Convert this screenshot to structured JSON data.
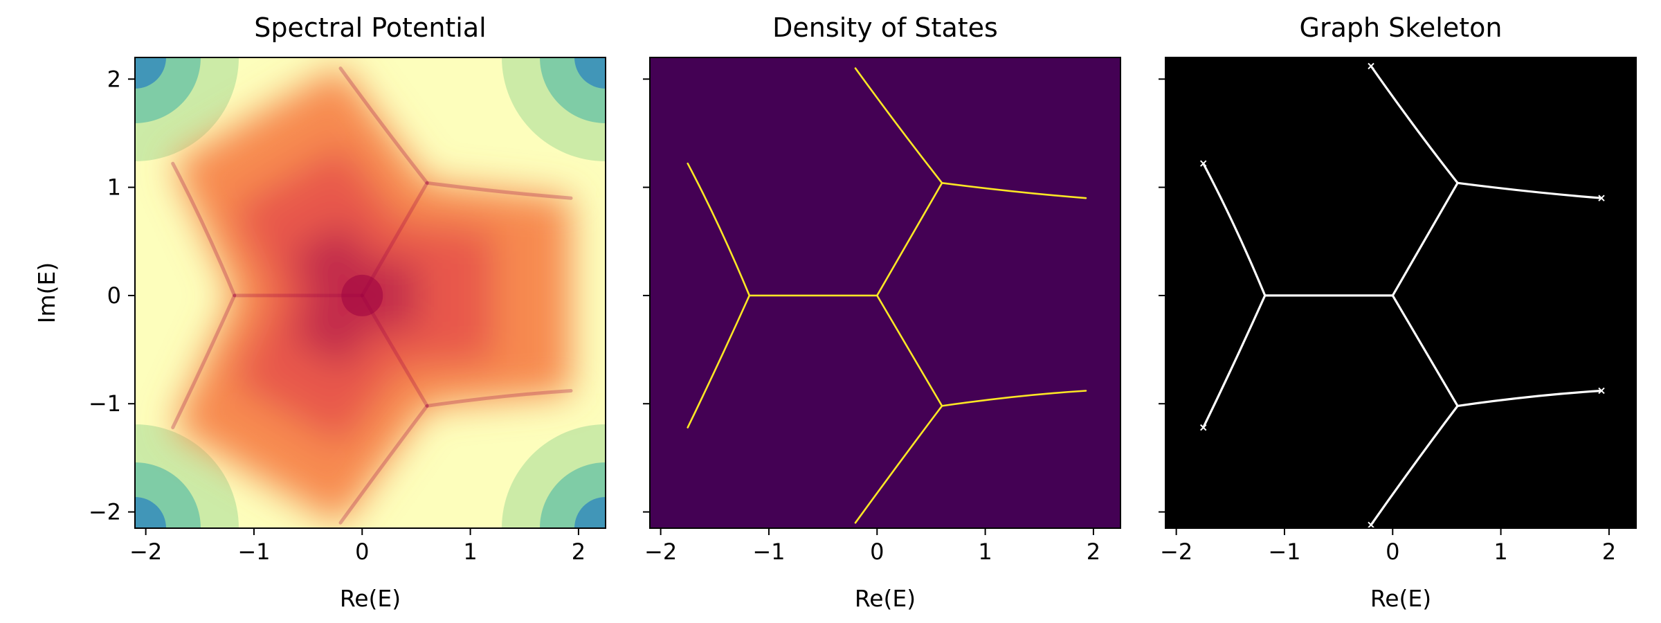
{
  "figure": {
    "ylabel": "Im(E)"
  },
  "chart_data": [
    {
      "type": "heatmap",
      "title": "Spectral Potential",
      "xlabel": "Re(E)",
      "ylabel": "Im(E)",
      "xlim": [
        -2.1,
        2.25
      ],
      "ylim": [
        -2.15,
        2.2
      ],
      "xticks": [
        -2,
        -1,
        0,
        1,
        2
      ],
      "yticks": [
        -2,
        -1,
        0,
        1,
        2
      ],
      "xtick_labels": [
        "−2",
        "−1",
        "0",
        "1",
        "2"
      ],
      "ytick_labels": [
        "−2",
        "−1",
        "0",
        "1",
        "2"
      ],
      "colormap": "Spectral",
      "low_color": "#9e0142",
      "high_color": "#5e4fa2",
      "skeleton_vertices": [
        [
          -1.75,
          1.22
        ],
        [
          -1.75,
          -1.22
        ],
        [
          -0.2,
          2.12
        ],
        [
          -0.2,
          -2.12
        ],
        [
          1.93,
          0.9
        ],
        [
          1.93,
          -0.9
        ],
        [
          -1.18,
          0.0
        ],
        [
          0.0,
          0.0
        ],
        [
          0.6,
          1.04
        ],
        [
          0.6,
          -1.02
        ]
      ]
    },
    {
      "type": "heatmap",
      "title": "Density of States",
      "xlabel": "Re(E)",
      "xlim": [
        -2.1,
        2.25
      ],
      "ylim": [
        -2.15,
        2.2
      ],
      "xticks": [
        -2,
        -1,
        0,
        1,
        2
      ],
      "xtick_labels": [
        "−2",
        "−1",
        "0",
        "1",
        "2"
      ],
      "colormap": "viridis",
      "background_color": "#440154",
      "line_color": "#fde725",
      "segments": [
        [
          [
            -1.75,
            1.22
          ],
          [
            -1.45,
            0.65
          ],
          [
            -1.18,
            0.0
          ]
        ],
        [
          [
            -1.75,
            -1.22
          ],
          [
            -1.45,
            -0.6
          ],
          [
            -1.18,
            0.0
          ]
        ],
        [
          [
            -1.18,
            0.0
          ],
          [
            0.0,
            0.0
          ]
        ],
        [
          [
            0.0,
            0.0
          ],
          [
            0.6,
            1.04
          ]
        ],
        [
          [
            0.0,
            0.0
          ],
          [
            0.6,
            -1.02
          ]
        ],
        [
          [
            -0.2,
            2.1
          ],
          [
            0.2,
            1.55
          ],
          [
            0.6,
            1.04
          ]
        ],
        [
          [
            0.6,
            1.04
          ],
          [
            1.3,
            0.95
          ],
          [
            1.93,
            0.9
          ]
        ],
        [
          [
            0.6,
            -1.02
          ],
          [
            1.3,
            -0.92
          ],
          [
            1.93,
            -0.88
          ]
        ],
        [
          [
            -0.2,
            -2.1
          ],
          [
            0.2,
            -1.55
          ],
          [
            0.6,
            -1.02
          ]
        ]
      ]
    },
    {
      "type": "heatmap",
      "title": "Graph Skeleton",
      "xlabel": "Re(E)",
      "xlim": [
        -2.1,
        2.25
      ],
      "ylim": [
        -2.15,
        2.2
      ],
      "xticks": [
        -2,
        -1,
        0,
        1,
        2
      ],
      "xtick_labels": [
        "−2",
        "−1",
        "0",
        "1",
        "2"
      ],
      "colormap": "gray",
      "background_color": "#000000",
      "line_color": "#ffffff",
      "endpoints": [
        [
          -1.75,
          1.22
        ],
        [
          -1.75,
          -1.22
        ],
        [
          -0.2,
          2.12
        ],
        [
          -0.2,
          -2.12
        ],
        [
          1.93,
          0.9
        ],
        [
          1.93,
          -0.88
        ]
      ],
      "segments": [
        [
          [
            -1.75,
            1.22
          ],
          [
            -1.45,
            0.65
          ],
          [
            -1.18,
            0.0
          ]
        ],
        [
          [
            -1.75,
            -1.22
          ],
          [
            -1.45,
            -0.6
          ],
          [
            -1.18,
            0.0
          ]
        ],
        [
          [
            -1.18,
            0.0
          ],
          [
            0.0,
            0.0
          ]
        ],
        [
          [
            0.0,
            0.0
          ],
          [
            0.6,
            1.04
          ]
        ],
        [
          [
            0.0,
            0.0
          ],
          [
            0.6,
            -1.02
          ]
        ],
        [
          [
            -0.2,
            2.12
          ],
          [
            0.2,
            1.55
          ],
          [
            0.6,
            1.04
          ]
        ],
        [
          [
            0.6,
            1.04
          ],
          [
            1.3,
            0.95
          ],
          [
            1.93,
            0.9
          ]
        ],
        [
          [
            0.6,
            -1.02
          ],
          [
            1.3,
            -0.92
          ],
          [
            1.93,
            -0.88
          ]
        ],
        [
          [
            -0.2,
            -2.12
          ],
          [
            0.2,
            -1.55
          ],
          [
            0.6,
            -1.02
          ]
        ]
      ]
    }
  ]
}
